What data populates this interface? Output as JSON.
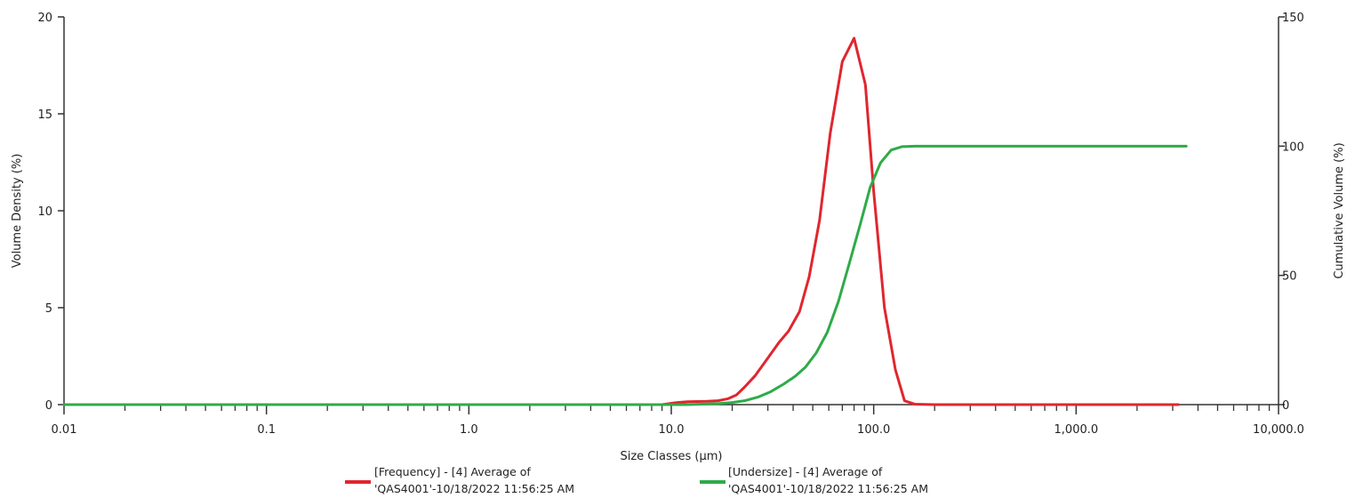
{
  "chart_data": {
    "type": "line",
    "xlabel": "Size Classes (μm)",
    "ylabel": "Volume Density (%)",
    "y2label": "Cumulative Volume (%)",
    "x_scale": "log",
    "xlim": [
      0.01,
      10000
    ],
    "ylim": [
      0,
      20
    ],
    "y2lim": [
      0,
      150
    ],
    "x_ticks": [
      "0.01",
      "0.1",
      "1.0",
      "10.0",
      "100.0",
      "1,000.0",
      "10,000.0"
    ],
    "x_tick_values": [
      0.01,
      0.1,
      1,
      10,
      100,
      1000,
      10000
    ],
    "y_ticks": [
      "0",
      "5",
      "10",
      "15",
      "20"
    ],
    "y_tick_values": [
      0,
      5,
      10,
      15,
      20
    ],
    "y2_ticks": [
      "0",
      "50",
      "100",
      "150"
    ],
    "y2_tick_values": [
      0,
      50,
      100,
      150
    ],
    "grid": false,
    "legend_position": "bottom",
    "series": [
      {
        "name_line1": "[Frequency] - [4] Average of",
        "name_line2": "'QAS4001'-10/18/2022 11:56:25 AM",
        "axis": "left",
        "color": "#e0262e",
        "points": [
          [
            0.01,
            0
          ],
          [
            9,
            0
          ],
          [
            10.5,
            0.1
          ],
          [
            12,
            0.15
          ],
          [
            15,
            0.17
          ],
          [
            17,
            0.2
          ],
          [
            19,
            0.3
          ],
          [
            21,
            0.5
          ],
          [
            23,
            0.9
          ],
          [
            26,
            1.5
          ],
          [
            30,
            2.4
          ],
          [
            34,
            3.2
          ],
          [
            38,
            3.8
          ],
          [
            43,
            4.8
          ],
          [
            48,
            6.6
          ],
          [
            54,
            9.5
          ],
          [
            61,
            14.0
          ],
          [
            70,
            17.7
          ],
          [
            80,
            18.9
          ],
          [
            91,
            16.5
          ],
          [
            100,
            11.0
          ],
          [
            113,
            5.0
          ],
          [
            128,
            1.8
          ],
          [
            142,
            0.2
          ],
          [
            160,
            0.02
          ],
          [
            200,
            0
          ],
          [
            1000,
            0
          ],
          [
            3200,
            0
          ]
        ]
      },
      {
        "name_line1": "[Undersize] - [4] Average of",
        "name_line2": "'QAS4001'-10/18/2022 11:56:25 AM",
        "axis": "right",
        "color": "#2eab48",
        "points": [
          [
            0.01,
            0
          ],
          [
            12,
            0
          ],
          [
            17,
            0.4
          ],
          [
            20,
            0.8
          ],
          [
            23,
            1.5
          ],
          [
            27,
            3
          ],
          [
            31,
            5
          ],
          [
            36,
            8
          ],
          [
            41,
            11
          ],
          [
            46,
            14.5
          ],
          [
            52,
            20
          ],
          [
            59,
            28
          ],
          [
            67,
            40
          ],
          [
            76,
            55
          ],
          [
            86,
            70
          ],
          [
            96,
            84
          ],
          [
            108,
            93.5
          ],
          [
            122,
            98.5
          ],
          [
            138,
            99.8
          ],
          [
            160,
            100
          ],
          [
            1000,
            100
          ],
          [
            3500,
            100
          ]
        ]
      }
    ]
  }
}
